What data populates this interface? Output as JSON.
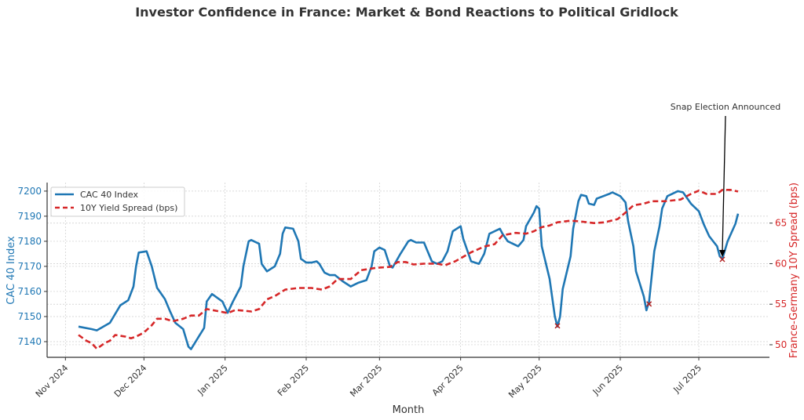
{
  "chart_data": {
    "type": "line",
    "title": "Investor Confidence in France: Market & Bond Reactions to Political Gridlock",
    "xlabel": "Month",
    "ylabel_left": "CAC 40 Index",
    "ylabel_right": "France-Germany 10Y Spread (bps)",
    "xlim": [
      "2024-10-25",
      "2025-07-28"
    ],
    "ylim_left": [
      7133.75,
      7203.4
    ],
    "ylim_right": [
      48.45,
      70.0
    ],
    "x_ticks": [
      {
        "date": "2024-11-01",
        "label": "Nov 2024"
      },
      {
        "date": "2024-12-01",
        "label": "Dec 2024"
      },
      {
        "date": "2025-01-01",
        "label": "Jan 2025"
      },
      {
        "date": "2025-02-01",
        "label": "Feb 2025"
      },
      {
        "date": "2025-03-01",
        "label": "Mar 2025"
      },
      {
        "date": "2025-04-01",
        "label": "Apr 2025"
      },
      {
        "date": "2025-05-01",
        "label": "May 2025"
      },
      {
        "date": "2025-06-01",
        "label": "Jun 2025"
      },
      {
        "date": "2025-07-01",
        "label": "Jul 2025"
      }
    ],
    "y_ticks_left": [
      7140,
      7150,
      7160,
      7170,
      7180,
      7190,
      7200
    ],
    "y_ticks_right": [
      50,
      55,
      60,
      65
    ],
    "grid": true,
    "legend_position": "top-left",
    "colors": {
      "cac": "#1f77b4",
      "spread": "#d62728",
      "marker": "#b22222",
      "annotation": "#000000"
    },
    "series": [
      {
        "name": "CAC 40 Index",
        "axis": "left",
        "style": "solid",
        "points": [
          [
            "2024-11-06",
            7146
          ],
          [
            "2024-11-11",
            7145
          ],
          [
            "2024-11-13",
            7144.5
          ],
          [
            "2024-11-18",
            7147.5
          ],
          [
            "2024-11-22",
            7154.5
          ],
          [
            "2024-11-25",
            7156.5
          ],
          [
            "2024-11-27",
            7162
          ],
          [
            "2024-11-28",
            7170
          ],
          [
            "2024-11-29",
            7175.5
          ],
          [
            "2024-12-02",
            7176
          ],
          [
            "2024-12-04",
            7170
          ],
          [
            "2024-12-06",
            7161.5
          ],
          [
            "2024-12-09",
            7157
          ],
          [
            "2024-12-11",
            7152
          ],
          [
            "2024-12-13",
            7147.5
          ],
          [
            "2024-12-16",
            7145
          ],
          [
            "2024-12-18",
            7138
          ],
          [
            "2024-12-19",
            7137
          ],
          [
            "2024-12-24",
            7145.5
          ],
          [
            "2024-12-25",
            7156
          ],
          [
            "2024-12-27",
            7159
          ],
          [
            "2024-12-31",
            7156
          ],
          [
            "2025-01-02",
            7151.5
          ],
          [
            "2025-01-04",
            7156
          ],
          [
            "2025-01-07",
            7162
          ],
          [
            "2025-01-08",
            7170
          ],
          [
            "2025-01-10",
            7180
          ],
          [
            "2025-01-11",
            7180.5
          ],
          [
            "2025-01-14",
            7179
          ],
          [
            "2025-01-15",
            7171
          ],
          [
            "2025-01-17",
            7168
          ],
          [
            "2025-01-20",
            7170
          ],
          [
            "2025-01-22",
            7175
          ],
          [
            "2025-01-23",
            7183
          ],
          [
            "2025-01-24",
            7185.5
          ],
          [
            "2025-01-27",
            7185
          ],
          [
            "2025-01-29",
            7180
          ],
          [
            "2025-01-30",
            7173
          ],
          [
            "2025-02-01",
            7171.5
          ],
          [
            "2025-02-03",
            7171.5
          ],
          [
            "2025-02-05",
            7172
          ],
          [
            "2025-02-06",
            7171
          ],
          [
            "2025-02-08",
            7167.5
          ],
          [
            "2025-02-10",
            7166.5
          ],
          [
            "2025-02-12",
            7166.5
          ],
          [
            "2025-02-15",
            7164
          ],
          [
            "2025-02-18",
            7162
          ],
          [
            "2025-02-21",
            7163.5
          ],
          [
            "2025-02-24",
            7164.5
          ],
          [
            "2025-02-26",
            7170
          ],
          [
            "2025-02-27",
            7176
          ],
          [
            "2025-03-01",
            7177.5
          ],
          [
            "2025-03-03",
            7176.5
          ],
          [
            "2025-03-05",
            7170
          ],
          [
            "2025-03-06",
            7169.5
          ],
          [
            "2025-03-09",
            7175
          ],
          [
            "2025-03-12",
            7180
          ],
          [
            "2025-03-13",
            7180.5
          ],
          [
            "2025-03-15",
            7179.5
          ],
          [
            "2025-03-18",
            7179.5
          ],
          [
            "2025-03-19",
            7177
          ],
          [
            "2025-03-21",
            7172
          ],
          [
            "2025-03-23",
            7171
          ],
          [
            "2025-03-25",
            7172
          ],
          [
            "2025-03-27",
            7176
          ],
          [
            "2025-03-29",
            7184
          ],
          [
            "2025-04-01",
            7186
          ],
          [
            "2025-04-02",
            7181
          ],
          [
            "2025-04-05",
            7172
          ],
          [
            "2025-04-08",
            7171
          ],
          [
            "2025-04-10",
            7175
          ],
          [
            "2025-04-12",
            7183
          ],
          [
            "2025-04-16",
            7185
          ],
          [
            "2025-04-17",
            7183
          ],
          [
            "2025-04-19",
            7180
          ],
          [
            "2025-04-23",
            7178
          ],
          [
            "2025-04-25",
            7180.5
          ],
          [
            "2025-04-26",
            7186
          ],
          [
            "2025-04-29",
            7191.5
          ],
          [
            "2025-04-30",
            7194
          ],
          [
            "2025-05-01",
            7193
          ],
          [
            "2025-05-02",
            7178
          ],
          [
            "2025-05-05",
            7165
          ],
          [
            "2025-05-07",
            7150
          ],
          [
            "2025-05-08",
            7146
          ],
          [
            "2025-05-09",
            7150
          ],
          [
            "2025-05-10",
            7161
          ],
          [
            "2025-05-13",
            7174
          ],
          [
            "2025-05-14",
            7185
          ],
          [
            "2025-05-16",
            7196
          ],
          [
            "2025-05-17",
            7198.5
          ],
          [
            "2025-05-19",
            7198
          ],
          [
            "2025-05-20",
            7195
          ],
          [
            "2025-05-22",
            7194.5
          ],
          [
            "2025-05-23",
            7197
          ],
          [
            "2025-05-28",
            7199
          ],
          [
            "2025-05-29",
            7199.5
          ],
          [
            "2025-06-01",
            7198
          ],
          [
            "2025-06-03",
            7195.5
          ],
          [
            "2025-06-04",
            7188
          ],
          [
            "2025-06-06",
            7178
          ],
          [
            "2025-06-07",
            7168
          ],
          [
            "2025-06-10",
            7158
          ],
          [
            "2025-06-11",
            7152.5
          ],
          [
            "2025-06-12",
            7156
          ],
          [
            "2025-06-14",
            7176
          ],
          [
            "2025-06-16",
            7186
          ],
          [
            "2025-06-17",
            7193
          ],
          [
            "2025-06-19",
            7198
          ],
          [
            "2025-06-23",
            7200
          ],
          [
            "2025-06-25",
            7199.5
          ],
          [
            "2025-06-28",
            7195
          ],
          [
            "2025-07-01",
            7192
          ],
          [
            "2025-07-03",
            7186.5
          ],
          [
            "2025-07-05",
            7182
          ],
          [
            "2025-07-08",
            7178
          ],
          [
            "2025-07-09",
            7174
          ],
          [
            "2025-07-10",
            7173
          ],
          [
            "2025-07-12",
            7180
          ],
          [
            "2025-07-15",
            7187
          ],
          [
            "2025-07-16",
            7191
          ]
        ]
      },
      {
        "name": "10Y Yield Spread (bps)",
        "axis": "right",
        "style": "dashed",
        "points": [
          [
            "2024-11-06",
            51.2
          ],
          [
            "2024-11-09",
            50.5
          ],
          [
            "2024-11-11",
            50.2
          ],
          [
            "2024-11-13",
            49.5
          ],
          [
            "2024-11-16",
            50.2
          ],
          [
            "2024-11-18",
            50.5
          ],
          [
            "2024-11-20",
            51.2
          ],
          [
            "2024-11-24",
            51
          ],
          [
            "2024-11-26",
            50.8
          ],
          [
            "2024-11-28",
            51
          ],
          [
            "2024-12-01",
            51.5
          ],
          [
            "2024-12-04",
            52.4
          ],
          [
            "2024-12-06",
            53.2
          ],
          [
            "2024-12-09",
            53.2
          ],
          [
            "2024-12-12",
            52.9
          ],
          [
            "2024-12-16",
            53.2
          ],
          [
            "2024-12-19",
            53.6
          ],
          [
            "2024-12-22",
            53.6
          ],
          [
            "2024-12-25",
            54.4
          ],
          [
            "2024-12-30",
            54.1
          ],
          [
            "2025-01-02",
            53.9
          ],
          [
            "2025-01-05",
            54.3
          ],
          [
            "2025-01-08",
            54.2
          ],
          [
            "2025-01-11",
            54.1
          ],
          [
            "2025-01-14",
            54.4
          ],
          [
            "2025-01-17",
            55.6
          ],
          [
            "2025-01-20",
            56
          ],
          [
            "2025-01-24",
            56.8
          ],
          [
            "2025-01-29",
            57
          ],
          [
            "2025-02-03",
            57
          ],
          [
            "2025-02-07",
            56.8
          ],
          [
            "2025-02-10",
            57.2
          ],
          [
            "2025-02-13",
            58.1
          ],
          [
            "2025-02-18",
            58.1
          ],
          [
            "2025-02-22",
            59.2
          ],
          [
            "2025-02-28",
            59.5
          ],
          [
            "2025-03-05",
            59.6
          ],
          [
            "2025-03-08",
            60.2
          ],
          [
            "2025-03-11",
            60.2
          ],
          [
            "2025-03-14",
            59.9
          ],
          [
            "2025-03-18",
            60
          ],
          [
            "2025-03-23",
            60
          ],
          [
            "2025-03-26",
            59.8
          ],
          [
            "2025-03-30",
            60.3
          ],
          [
            "2025-04-05",
            61.4
          ],
          [
            "2025-04-10",
            62.1
          ],
          [
            "2025-04-14",
            62.4
          ],
          [
            "2025-04-17",
            63.5
          ],
          [
            "2025-04-22",
            63.8
          ],
          [
            "2025-04-26",
            63.7
          ],
          [
            "2025-04-29",
            64
          ],
          [
            "2025-05-02",
            64.5
          ],
          [
            "2025-05-05",
            64.7
          ],
          [
            "2025-05-08",
            65.1
          ],
          [
            "2025-05-13",
            65.3
          ],
          [
            "2025-05-17",
            65.2
          ],
          [
            "2025-05-22",
            65
          ],
          [
            "2025-05-26",
            65.1
          ],
          [
            "2025-05-31",
            65.5
          ],
          [
            "2025-06-03",
            66.3
          ],
          [
            "2025-06-06",
            67.2
          ],
          [
            "2025-06-10",
            67.4
          ],
          [
            "2025-06-13",
            67.7
          ],
          [
            "2025-06-18",
            67.7
          ],
          [
            "2025-06-24",
            67.9
          ],
          [
            "2025-06-28",
            68.6
          ],
          [
            "2025-07-01",
            69
          ],
          [
            "2025-07-04",
            68.6
          ],
          [
            "2025-07-08",
            68.6
          ],
          [
            "2025-07-10",
            69.1
          ],
          [
            "2025-07-13",
            69.1
          ],
          [
            "2025-07-16",
            68.9
          ]
        ]
      }
    ],
    "event_markers": [
      {
        "date": "2025-05-08",
        "value": 7146.3,
        "axis": "left",
        "symbol": "x"
      },
      {
        "date": "2025-06-12",
        "value": 7155,
        "axis": "left",
        "symbol": "x"
      },
      {
        "date": "2025-07-10",
        "value": 7172.8,
        "axis": "left",
        "symbol": "x"
      }
    ],
    "annotation": {
      "text": "Snap Election Announced",
      "date": "2025-07-10",
      "value": 7172.8,
      "axis": "left"
    }
  }
}
